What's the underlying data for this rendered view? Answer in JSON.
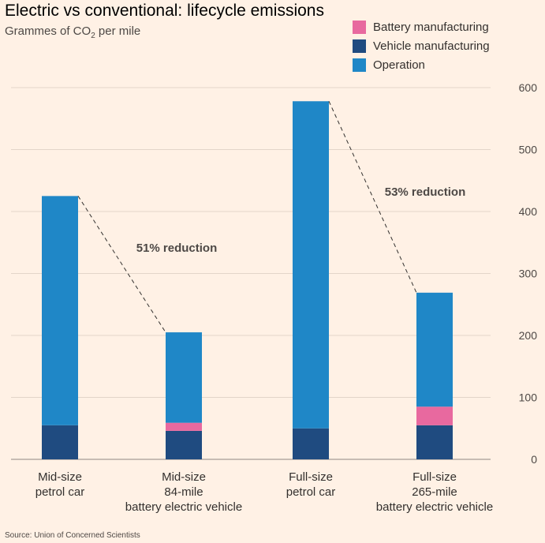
{
  "title": "Electric vs conventional: lifecycle emissions",
  "subtitle_prefix": "Grammes of CO",
  "subtitle_sub": "2",
  "subtitle_suffix": " per mile",
  "source": "Source: Union of Concerned Scientists",
  "colors": {
    "background": "#fff1e5",
    "battery": "#e8699f",
    "vehicle": "#1f4b80",
    "operation": "#1f87c7",
    "grid": "#e3d5c9",
    "text": "#33302e"
  },
  "chart_data": {
    "type": "bar",
    "stacked": true,
    "categories": [
      [
        "Mid-size",
        "petrol car"
      ],
      [
        "Mid-size",
        "84-mile",
        "battery electric vehicle"
      ],
      [
        "Full-size",
        "petrol car"
      ],
      [
        "Full-size",
        "265-mile",
        "battery electric vehicle"
      ]
    ],
    "series": [
      {
        "name": "Vehicle manufacturing",
        "color": "#1f4b80",
        "values": [
          55,
          46,
          50,
          55
        ]
      },
      {
        "name": "Battery manufacturing",
        "color": "#e8699f",
        "values": [
          0,
          13,
          0,
          30
        ]
      },
      {
        "name": "Operation",
        "color": "#1f87c7",
        "values": [
          370,
          146,
          528,
          184
        ]
      }
    ],
    "totals": [
      425,
      205,
      578,
      269
    ],
    "legend_order": [
      "Battery manufacturing",
      "Vehicle manufacturing",
      "Operation"
    ],
    "legend_position": "top-right",
    "ylim": [
      0,
      600
    ],
    "yticks": [
      0,
      100,
      200,
      300,
      400,
      500,
      600
    ],
    "y_axis_side": "right",
    "grid": true,
    "annotations": [
      {
        "text": "51% reduction",
        "from": 0,
        "to": 1
      },
      {
        "text": "53% reduction",
        "from": 2,
        "to": 3
      }
    ]
  }
}
